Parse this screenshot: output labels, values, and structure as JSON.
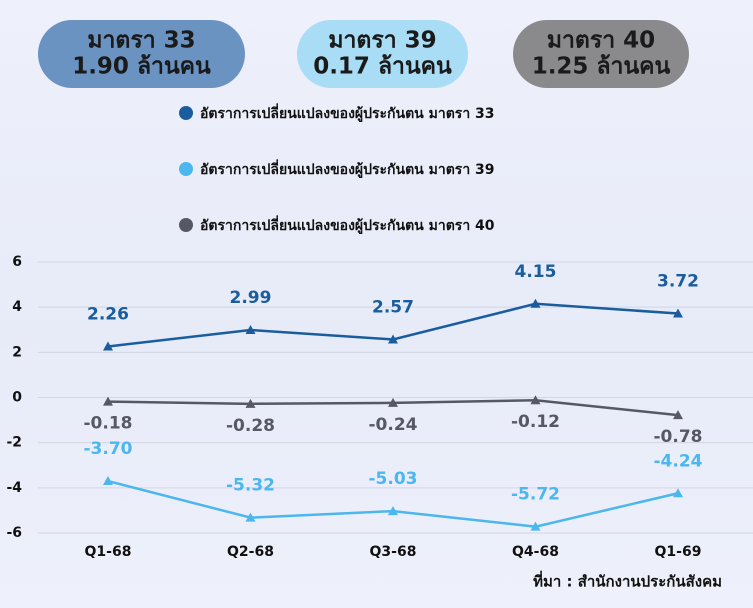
{
  "badges": [
    {
      "title": "มาตรา 33",
      "value": "1.90 ล้านคน",
      "color": "#6b93c2",
      "text_color": "#1a1a1a"
    },
    {
      "title": "มาตรา 39",
      "value": "0.17 ล้านคน",
      "color": "#a9ddf6",
      "text_color": "#1a1a1a"
    },
    {
      "title": "มาตรา 40",
      "value": "1.25 ล้านคน",
      "color": "#8a8a8c",
      "text_color": "#1a1a1a"
    }
  ],
  "chart_data": {
    "type": "line",
    "categories": [
      "Q1-68",
      "Q2-68",
      "Q3-68",
      "Q4-68",
      "Q1-69"
    ],
    "series": [
      {
        "name": "อัตราการเปลี่ยนแปลงของผู้ประกันตน มาตรา 33",
        "color": "#1a5d9e",
        "values": [
          2.26,
          2.99,
          2.57,
          4.15,
          3.72
        ],
        "value_labels": [
          "2.26",
          "2.99",
          "2.57",
          "4.15",
          "3.72"
        ],
        "label_position": "above"
      },
      {
        "name": "อัตราการเปลี่ยนแปลงของผู้ประกันตน มาตรา 39",
        "color": "#4cb6ee",
        "values": [
          -3.7,
          -5.32,
          -5.03,
          -5.72,
          -4.24
        ],
        "value_labels": [
          "-3.70",
          "-5.32",
          "-5.03",
          "-5.72",
          "-4.24"
        ],
        "label_position": "above"
      },
      {
        "name": "อัตราการเปลี่ยนแปลงของผู้ประกันตน มาตรา 40",
        "color": "#565866",
        "values": [
          -0.18,
          -0.28,
          -0.24,
          -0.12,
          -0.78
        ],
        "value_labels": [
          "-0.18",
          "-0.28",
          "-0.24",
          "-0.12",
          "-0.78"
        ],
        "label_position": "below"
      }
    ],
    "ylim": [
      -6,
      6
    ],
    "yticks": [
      6,
      4,
      2,
      0,
      -2,
      -4,
      -6
    ],
    "grid": true,
    "source": "ที่มา : สำนักงานประกันสังคม"
  }
}
